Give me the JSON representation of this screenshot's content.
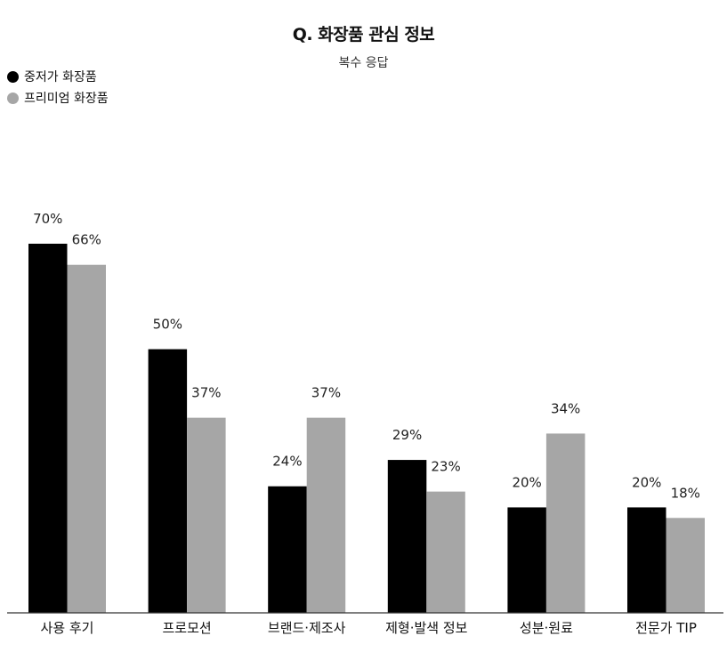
{
  "chart_data": {
    "type": "bar",
    "title": "Q. 화장품 관심 정보",
    "subtitle": "복수 응답",
    "categories": [
      "사용 후기",
      "프로모션",
      "브랜드·제조사",
      "제형·발색 정보",
      "성분·원료",
      "전문가 TIP"
    ],
    "series": [
      {
        "name": "중저가 화장품",
        "values": [
          70,
          50,
          24,
          29,
          20,
          20
        ],
        "labels": [
          "70%",
          "50%",
          "24%",
          "29%",
          "20%",
          "20%"
        ],
        "color": "#000000"
      },
      {
        "name": "프리미엄 화장품",
        "values": [
          66,
          37,
          37,
          23,
          34,
          18
        ],
        "labels": [
          "66%",
          "37%",
          "37%",
          "23%",
          "34%",
          "18%"
        ],
        "color": "#a6a6a6"
      }
    ],
    "ylim": [
      0,
      70
    ],
    "legend_position": "top-left",
    "grid": false
  }
}
